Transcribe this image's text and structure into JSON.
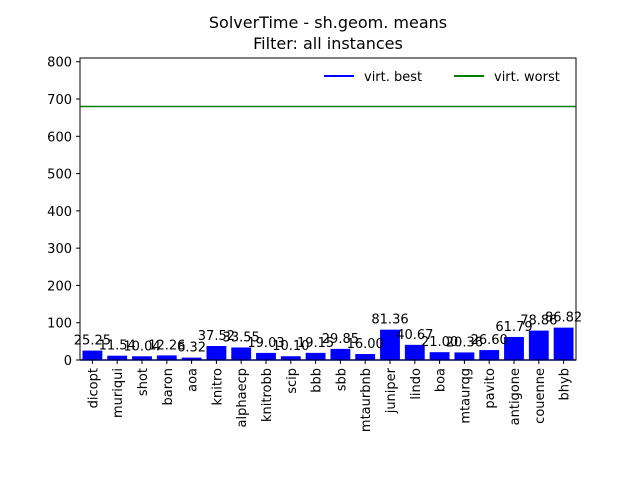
{
  "chart_data": {
    "type": "bar",
    "title": "SolverTime - sh.geom. means",
    "subtitle": "Filter: all instances",
    "categories": [
      "dicopt",
      "muriqui",
      "shot",
      "baron",
      "aoa",
      "knitro",
      "alphaecp",
      "knitrobb",
      "scip",
      "bbb",
      "sbb",
      "mtaurbnb",
      "juniper",
      "lindo",
      "boa",
      "mtaurqg",
      "pavito",
      "antigone",
      "couenne",
      "bhyb"
    ],
    "values": [
      25.25,
      11.54,
      10.04,
      12.26,
      6.32,
      37.52,
      33.55,
      19.03,
      10.1,
      19.15,
      29.85,
      16.0,
      81.36,
      40.67,
      21.0,
      20.36,
      26.6,
      61.79,
      78.86,
      86.82
    ],
    "data_labels": [
      "25.25",
      "11.54",
      "10.04",
      "12.26",
      "6.32",
      "37.52",
      "33.55",
      "19.03",
      "10.10",
      "19.15",
      "29.85",
      "16.00",
      "81.36",
      "40.67",
      "21.00",
      "20.36",
      "26.60",
      "61.79",
      "78.86",
      "86.82"
    ],
    "ylim": [
      0,
      810
    ],
    "yticks": [
      0,
      100,
      200,
      300,
      400,
      500,
      600,
      700,
      800
    ],
    "bar_color": "#0000ff",
    "reference_lines": [
      {
        "name": "virt. best",
        "value": 0,
        "color": "#0000ff"
      },
      {
        "name": "virt. worst",
        "value": 680,
        "color": "#008000"
      }
    ],
    "legend_position": "top-right",
    "grid": false
  }
}
